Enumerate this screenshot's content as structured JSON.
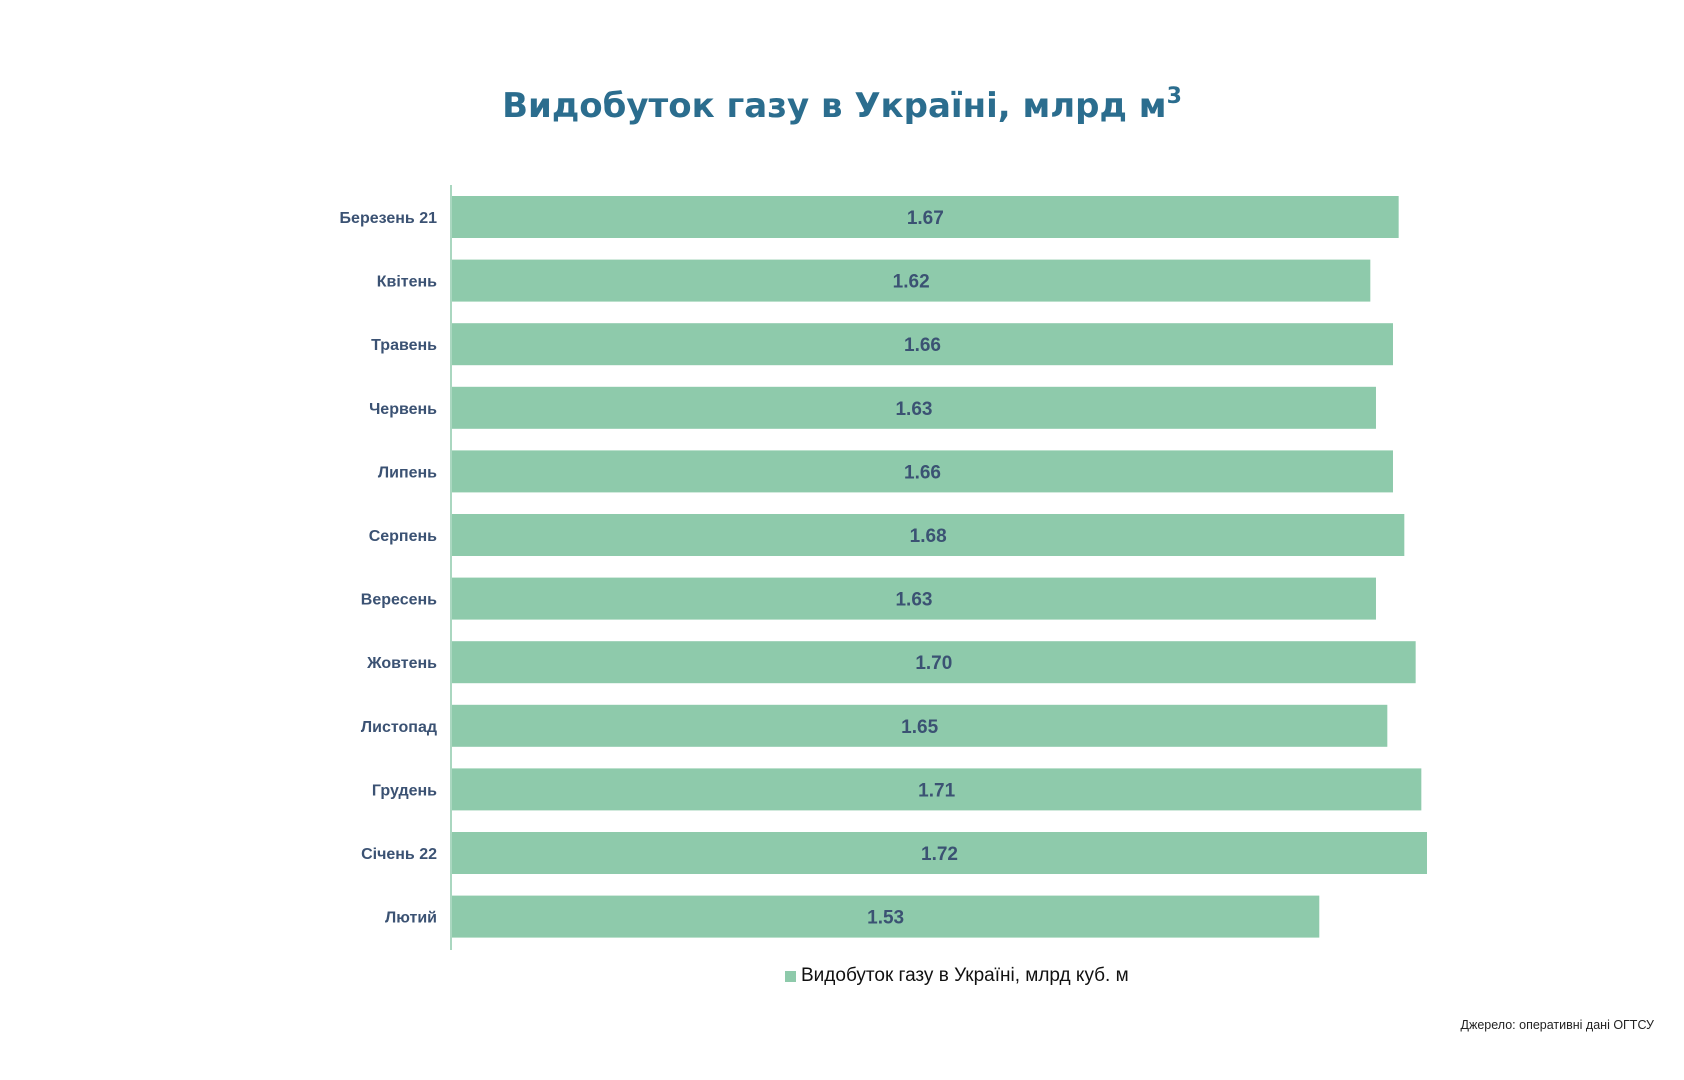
{
  "chart_data": {
    "type": "bar",
    "orientation": "horizontal",
    "title": "Видобуток газу в Україні, млрд м",
    "title_superscript": "3",
    "categories": [
      "Березень 21",
      "Квітень",
      "Травень",
      "Червень",
      "Липень",
      "Серпень",
      "Вересень",
      "Жовтень",
      "Листопад",
      "Грудень",
      "Січень 22",
      "Лютий"
    ],
    "series": [
      {
        "name": "Видобуток газу в Україні, млрд куб. м",
        "values": [
          1.67,
          1.62,
          1.66,
          1.63,
          1.66,
          1.68,
          1.63,
          1.7,
          1.65,
          1.71,
          1.72,
          1.53
        ],
        "labels": [
          "1.67",
          "1.62",
          "1.66",
          "1.63",
          "1.66",
          "1.68",
          "1.63",
          "1.70",
          "1.65",
          "1.71",
          "1.72",
          "1.53"
        ]
      }
    ],
    "xlim": [
      0,
      1.72
    ],
    "grid": false,
    "legend_position": "bottom",
    "colors": {
      "bar": "#8ecaab",
      "axis": "#8ecaab",
      "title": "#2b6d8e",
      "label": "#3b5273"
    }
  },
  "legend": {
    "label": "Видобуток газу в Україні, млрд куб. м"
  },
  "source": "Джерело: оперативні дані ОГТСУ"
}
